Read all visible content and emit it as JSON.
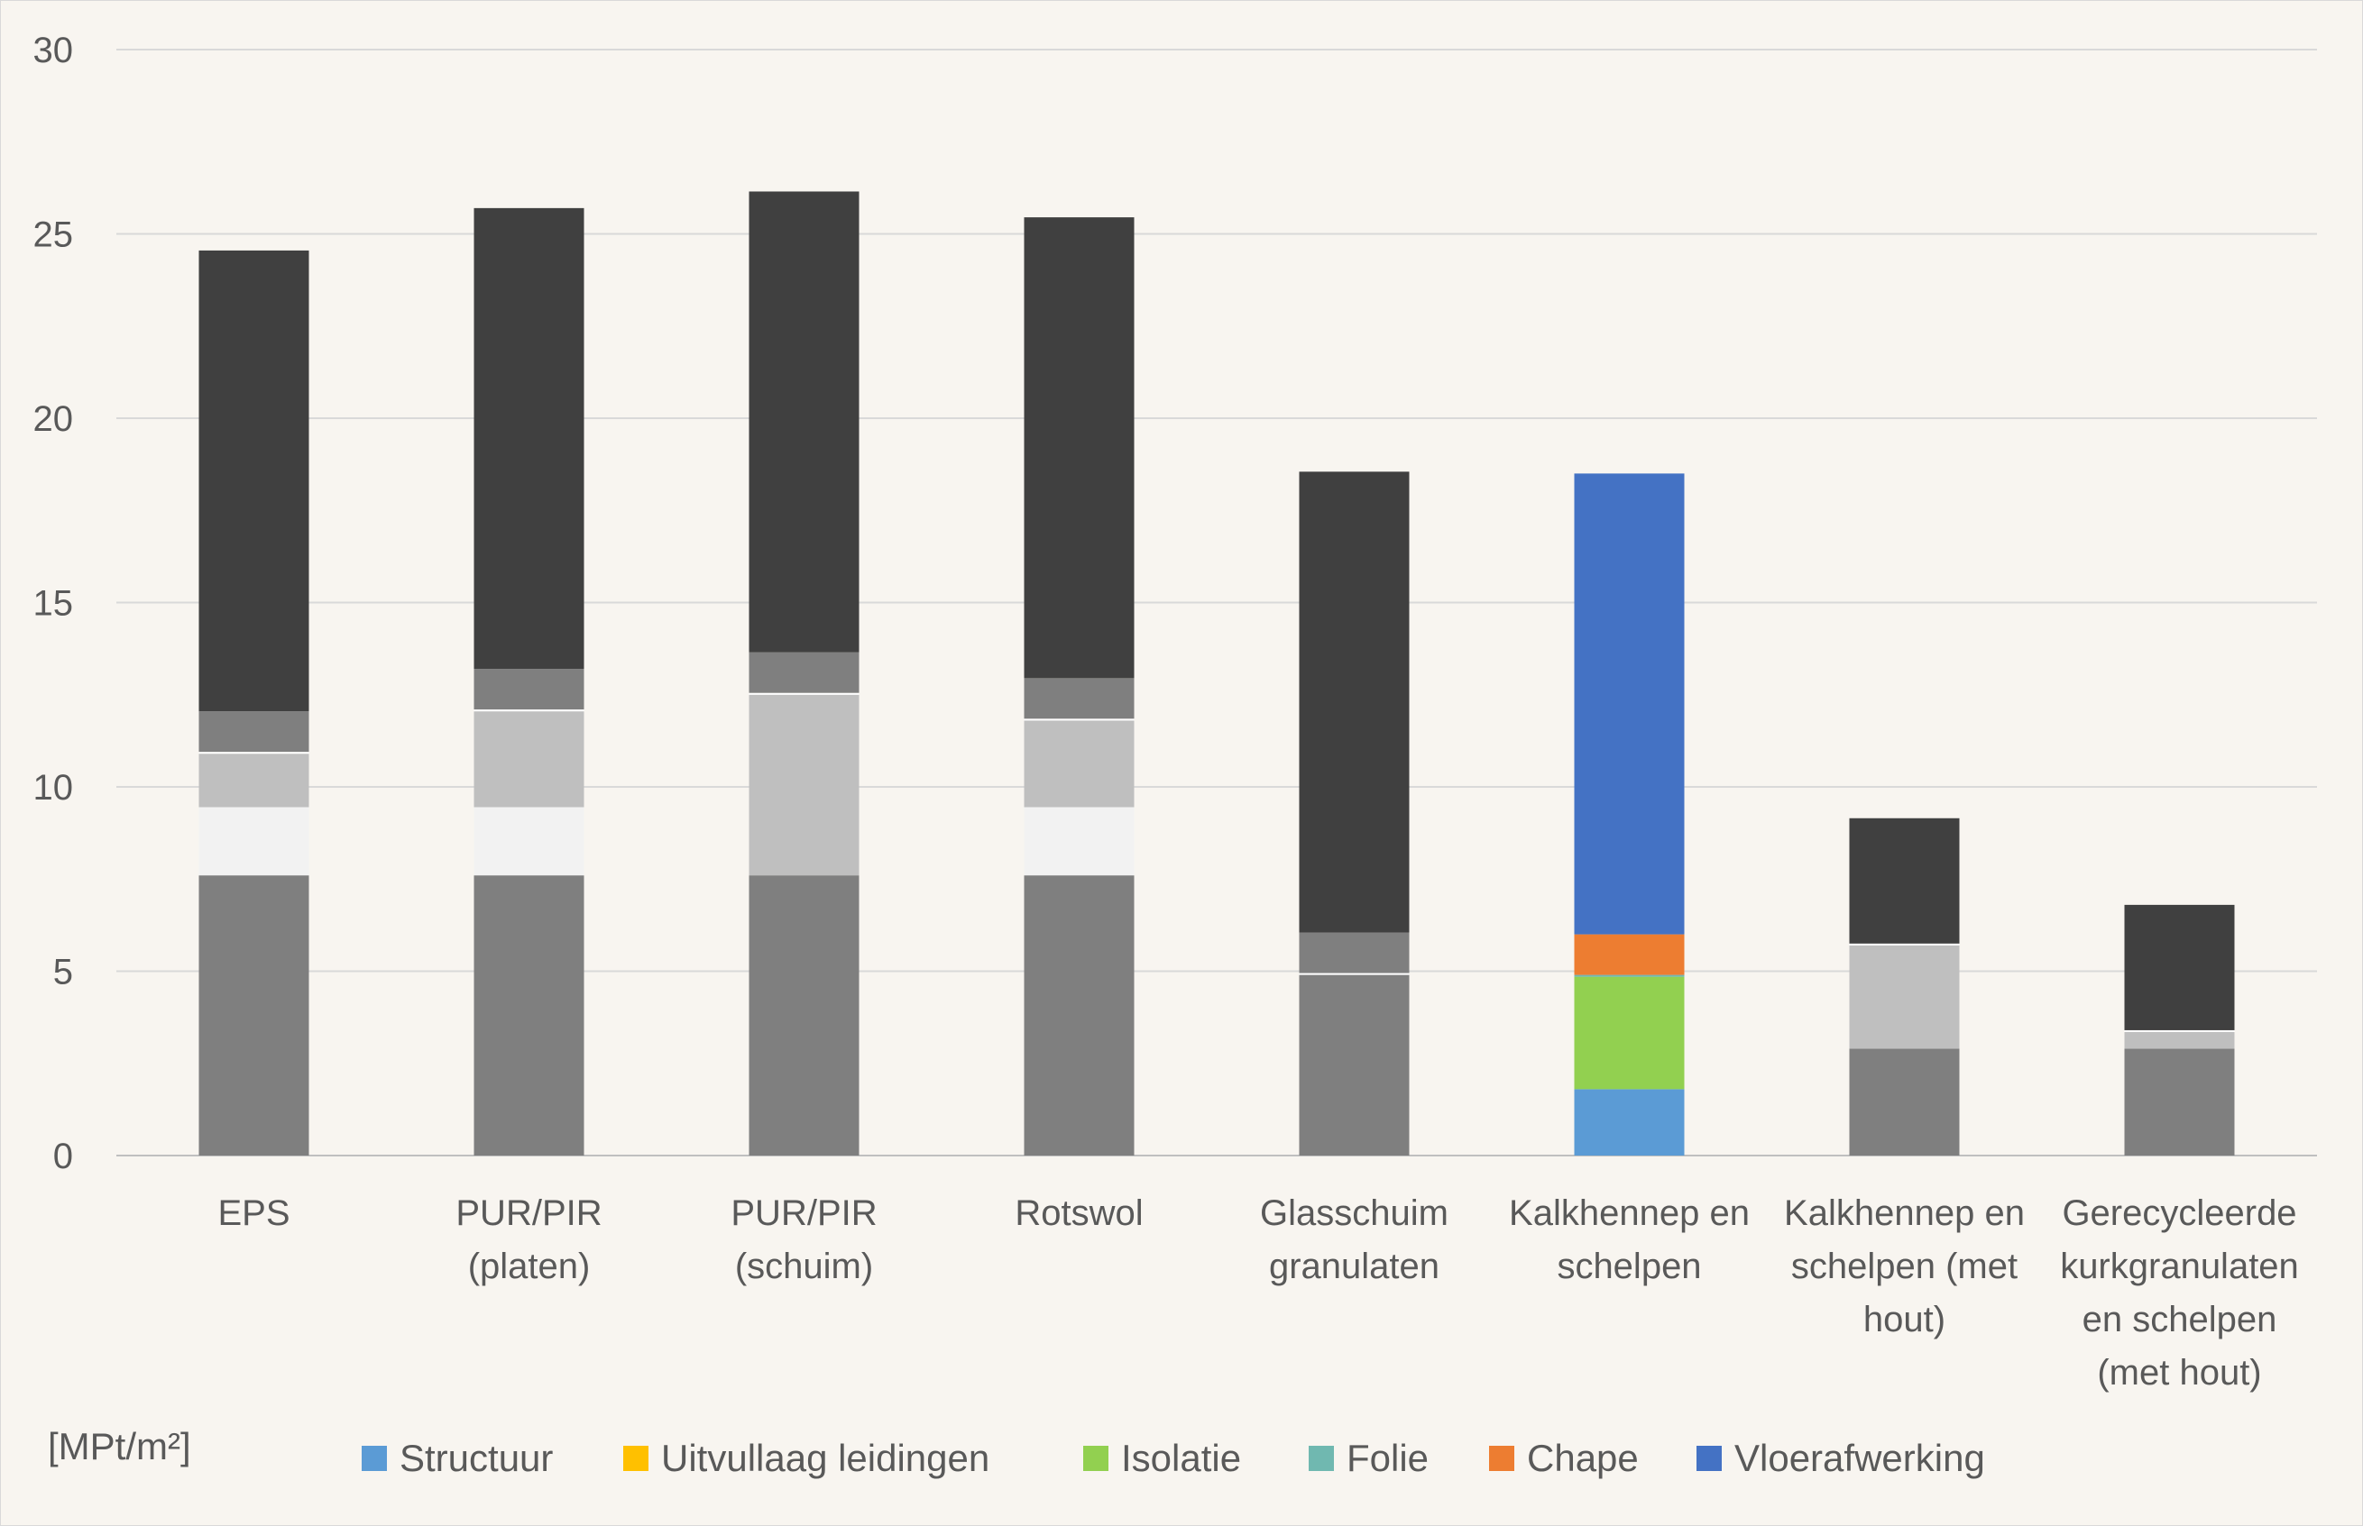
{
  "chart_data": {
    "type": "bar",
    "stacked": true,
    "unit_label": "[MPt/m²]",
    "ylim": [
      0,
      30
    ],
    "yticks": [
      0,
      5,
      10,
      15,
      20,
      25,
      30
    ],
    "grid": true,
    "legend_position": "bottom",
    "categories": [
      [
        "EPS"
      ],
      [
        "PUR/PIR",
        "(platen)"
      ],
      [
        "PUR/PIR",
        "(schuim)"
      ],
      [
        "Rotswol"
      ],
      [
        "Glasschuim",
        "granulaten"
      ],
      [
        "Kalkhennep en",
        "schelpen"
      ],
      [
        "Kalkhennep en",
        "schelpen (met",
        "hout)"
      ],
      [
        "Gerecycleerde",
        "kurkgranulaten",
        "en schelpen",
        "(met hout)"
      ]
    ],
    "series": [
      {
        "name": "Structuur",
        "color": "#5b9bd5",
        "values": [
          7.6,
          7.6,
          7.6,
          7.6,
          4.9,
          1.8,
          2.9,
          2.9
        ],
        "grey_color": "#7f7f7f"
      },
      {
        "name": "Uitvullaag leidingen",
        "color": "#ffc000",
        "values": [
          1.85,
          1.85,
          0,
          1.85,
          0,
          0,
          0,
          0
        ],
        "grey_color": "#f2f2f2"
      },
      {
        "name": "Isolatie",
        "color": "#92d050",
        "values": [
          1.45,
          2.6,
          4.9,
          2.35,
          0,
          3.05,
          2.8,
          0.45
        ],
        "grey_color": "#bfbfbf"
      },
      {
        "name": "Folie",
        "color": "#70b8b0",
        "values": [
          0.05,
          0.05,
          0.05,
          0.05,
          0.05,
          0.05,
          0.05,
          0.05
        ],
        "grey_color": "#ffffff"
      },
      {
        "name": "Chape",
        "color": "#ed7d31",
        "values": [
          1.1,
          1.1,
          1.1,
          1.1,
          1.1,
          1.1,
          0,
          0
        ],
        "grey_color": "#7f7f7f"
      },
      {
        "name": "Vloerafwerking",
        "color": "#4472c4",
        "values": [
          12.5,
          12.5,
          12.5,
          12.5,
          12.5,
          12.5,
          3.4,
          3.4
        ],
        "grey_color": "#404040"
      }
    ],
    "highlighted_category_index": 5
  }
}
